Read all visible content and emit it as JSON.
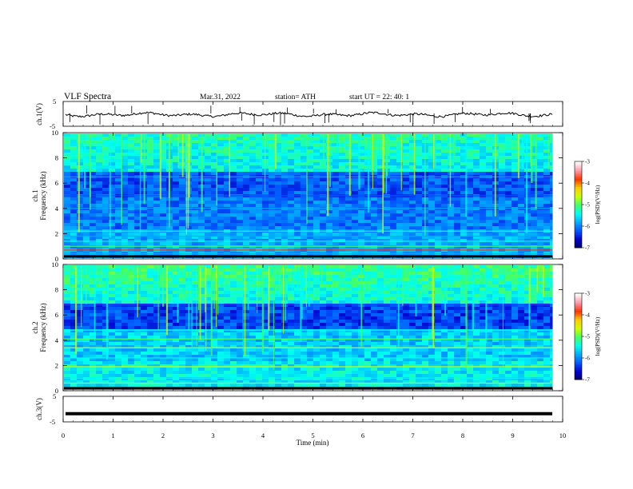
{
  "header": {
    "title": "VLF  Spectra",
    "date": "Mar.31, 2022",
    "station": "station= ATH",
    "start": "start  UT  =    22: 40: 1"
  },
  "colors": {
    "spectrogram_scale": [
      "#000066",
      "#0000cc",
      "#0055ff",
      "#00aaff",
      "#00ffee",
      "#44ff66",
      "#ccff00",
      "#ffcc00",
      "#ff3300",
      "#ff99aa",
      "#ffffff"
    ]
  },
  "chart_data": [
    {
      "type": "line",
      "name": "ch1-waveform",
      "ylabel": "ch.1(V)",
      "yticks": [
        "5",
        "-5"
      ],
      "ylim": [
        -5,
        5
      ],
      "xlim": [
        0,
        10
      ],
      "x_data_end": 9.8,
      "baseline": -0.3
    },
    {
      "type": "heatmap",
      "name": "ch1-spectrogram",
      "ylabel": "ch.1\nFrequency (kHz)",
      "ylabel_line1": "ch.1",
      "ylabel_line2": "Frequency  (kHz)",
      "yticks": [
        "0",
        "2",
        "4",
        "6",
        "8",
        "10"
      ],
      "ylim": [
        0,
        10
      ],
      "xlim": [
        0,
        10
      ],
      "colorbar": {
        "label": "log(PSD)(V²/Hz)",
        "ticks": [
          "-3",
          "-4",
          "-5",
          "-6",
          "-7"
        ],
        "range": [
          -7,
          -3
        ]
      }
    },
    {
      "type": "heatmap",
      "name": "ch2-spectrogram",
      "ylabel_line1": "ch.2",
      "ylabel_line2": "Frequency  (kHz)",
      "yticks": [
        "0",
        "2",
        "4",
        "6",
        "8",
        "10"
      ],
      "ylim": [
        0,
        10
      ],
      "xlim": [
        0,
        10
      ],
      "colorbar": {
        "label": "log(PSD)(V²/Hz)",
        "ticks": [
          "-3",
          "-4",
          "-5",
          "-6",
          "-7"
        ],
        "range": [
          -7,
          -3
        ]
      }
    },
    {
      "type": "line",
      "name": "ch3-waveform",
      "ylabel": "ch.3(V)",
      "yticks": [
        "5",
        "-5"
      ],
      "ylim": [
        -5,
        5
      ],
      "xlim": [
        0,
        10
      ],
      "x_data_end": 9.8,
      "baseline": -1.8
    }
  ],
  "xaxis": {
    "label": "Time  (min)",
    "ticks": [
      "0",
      "1",
      "2",
      "3",
      "4",
      "5",
      "6",
      "7",
      "8",
      "9",
      "10"
    ]
  }
}
